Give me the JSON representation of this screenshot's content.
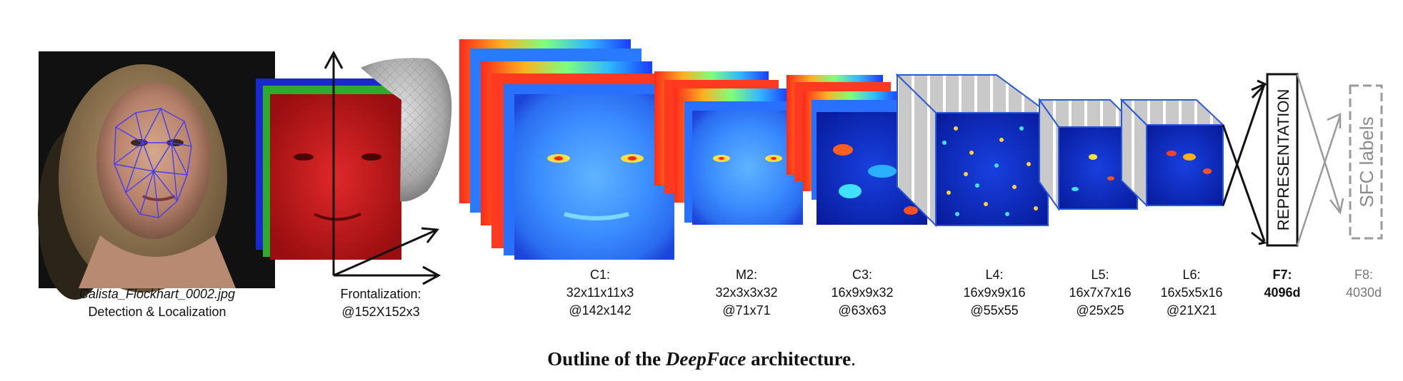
{
  "input": {
    "filename": "Calista_Flockhart_0002.jpg",
    "caption": "Detection & Localization"
  },
  "frontalization": {
    "name": "Frontalization:",
    "size": "@152X152x3"
  },
  "layers": [
    {
      "name": "C1:",
      "spec": "32x11x11x3",
      "size": "@142x142"
    },
    {
      "name": "M2:",
      "spec": "32x3x3x32",
      "size": "@71x71"
    },
    {
      "name": "C3:",
      "spec": "16x9x9x32",
      "size": "@63x63"
    },
    {
      "name": "L4:",
      "spec": "16x9x9x16",
      "size": "@55x55"
    },
    {
      "name": "L5:",
      "spec": "16x7x7x16",
      "size": "@25x25"
    },
    {
      "name": "L6:",
      "spec": "16x5x5x16",
      "size": "@21X21"
    }
  ],
  "f7": {
    "name": "F7:",
    "size": "4096d",
    "box_text": "REPRESENTATION"
  },
  "f8": {
    "name": "F8:",
    "size": "4030d",
    "box_text": "SFC labels"
  },
  "caption": {
    "prefix": "Outline of the ",
    "emph": "DeepFace",
    "suffix": " architecture",
    "end": "."
  }
}
